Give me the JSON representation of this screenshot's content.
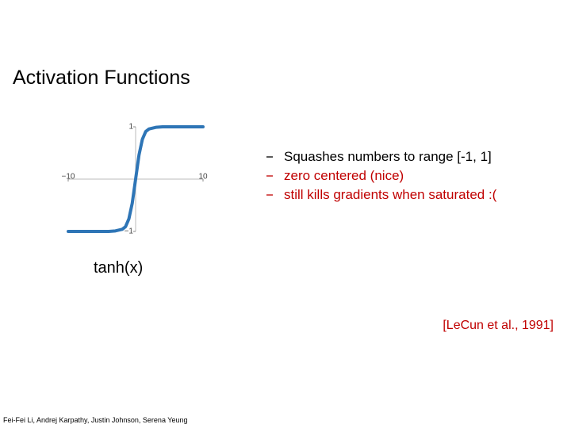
{
  "slide": {
    "title": "Activation Functions",
    "bullets": [
      "Squashes numbers to range [-1, 1]",
      "zero centered (nice)",
      "still kills gradients when saturated :("
    ],
    "caption": "tanh(x)",
    "citation": "[LeCun et al., 1991]",
    "footer": "Fei-Fei Li, Andrej Karpathy, Justin Johnson, Serena Yeung"
  },
  "chart_data": {
    "type": "line",
    "x": [
      -10,
      -8,
      -6,
      -4,
      -3,
      -2,
      -1.5,
      -1,
      -0.5,
      0,
      0.5,
      1,
      1.5,
      2,
      3,
      4,
      6,
      8,
      10
    ],
    "values": [
      -1,
      -1,
      -1,
      -1,
      -0.99,
      -0.96,
      -0.91,
      -0.76,
      -0.46,
      0,
      0.46,
      0.76,
      0.91,
      0.96,
      0.99,
      1,
      1,
      1,
      1
    ],
    "color": "#2e75b6",
    "xlim": [
      -10,
      10
    ],
    "ylim": [
      -1,
      1
    ],
    "xticks": [
      {
        "value": -10,
        "label": "−10"
      },
      10
    ],
    "yticks": [
      {
        "value": -1,
        "label": "−1"
      },
      1
    ]
  }
}
